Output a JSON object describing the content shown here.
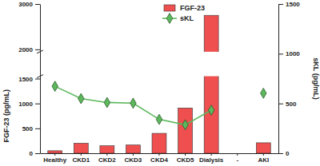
{
  "chart_data": {
    "type": "bar",
    "categories": [
      "Healthy",
      "CKD1",
      "CKD2",
      "CKD3",
      "CKD4",
      "CKD5",
      "Dialysis",
      "-",
      "AKI"
    ],
    "series": [
      {
        "name": "FGF-23",
        "type": "bar",
        "color": "#ef4f4f",
        "values": [
          50,
          200,
          150,
          165,
          400,
          910,
          2750,
          null,
          210
        ]
      },
      {
        "name": "sKL",
        "type": "line",
        "axis": "y2",
        "color": "#5cb85c",
        "marker": "diamond",
        "values": [
          673,
          549,
          510,
          503,
          340,
          286,
          433,
          null,
          603
        ]
      }
    ],
    "y_label": "FGF-23  (pg/mL)",
    "y2_label": "sKL  (pg/mL)",
    "ylim": [
      0,
      3000
    ],
    "yticks": [
      0,
      500,
      1000,
      1500,
      2000,
      3000
    ],
    "y2lim": [
      0,
      1500
    ],
    "y2ticks": [
      0,
      500,
      1000,
      1500
    ],
    "legend": "top",
    "grid": false
  }
}
